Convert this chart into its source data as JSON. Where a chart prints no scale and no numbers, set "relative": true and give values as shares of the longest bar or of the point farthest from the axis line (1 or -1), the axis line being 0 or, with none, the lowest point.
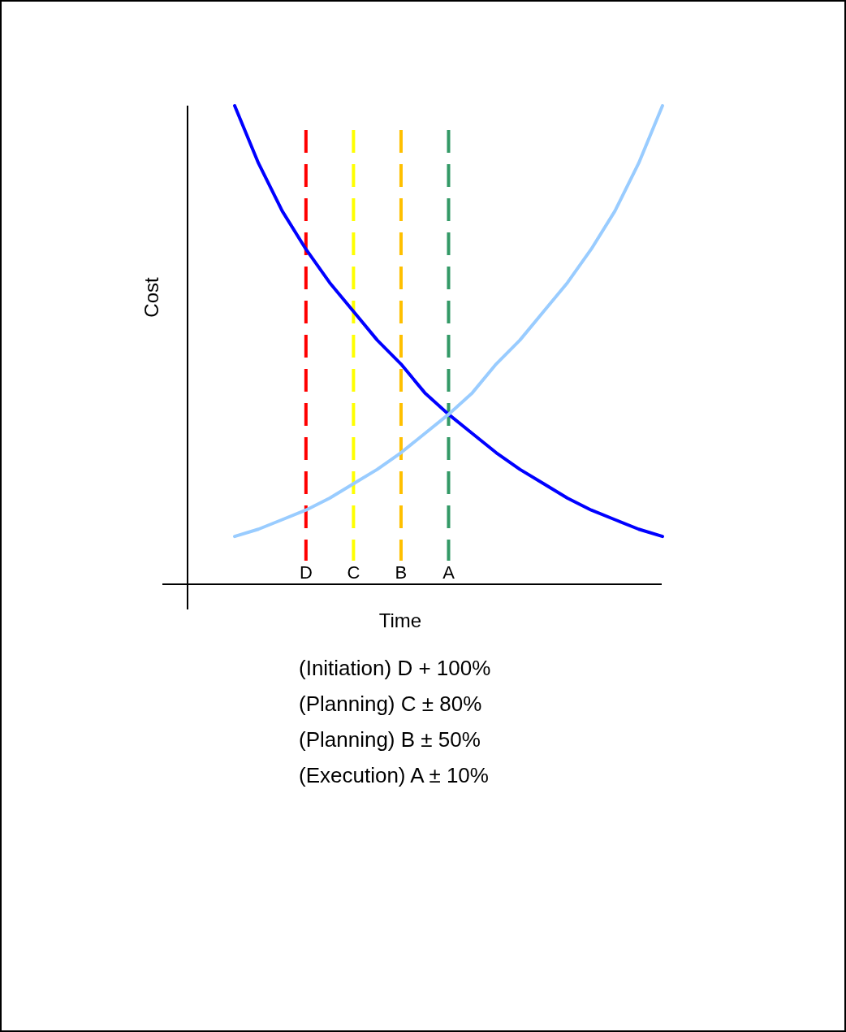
{
  "chart_data": {
    "type": "line",
    "relative": true,
    "xlabel": "Time",
    "ylabel": "Cost",
    "categories": [
      null,
      null,
      null,
      "D",
      null,
      "C",
      null,
      "B",
      null,
      "A",
      null,
      null,
      null,
      null,
      null,
      null,
      null,
      null,
      null
    ],
    "series": [
      {
        "color": "#0000ff",
        "values": [
          1.0,
          0.88,
          0.78,
          0.7,
          0.63,
          0.57,
          0.51,
          0.46,
          0.4,
          0.355,
          0.315,
          0.275,
          0.24,
          0.21,
          0.18,
          0.155,
          0.135,
          0.115,
          0.1
        ]
      },
      {
        "color": "#99ccff",
        "values": [
          0.1,
          0.115,
          0.135,
          0.155,
          0.18,
          0.21,
          0.24,
          0.275,
          0.315,
          0.355,
          0.4,
          0.46,
          0.51,
          0.57,
          0.63,
          0.7,
          0.78,
          0.88,
          1.0
        ]
      }
    ],
    "ref_lines": [
      {
        "axis": "x",
        "value": "D",
        "color": "#ff0000",
        "line_style": "dashed"
      },
      {
        "axis": "x",
        "value": "C",
        "color": "#ffff00",
        "line_style": "dashed"
      },
      {
        "axis": "x",
        "value": "B",
        "color": "#ffc000",
        "line_style": "dashed"
      },
      {
        "axis": "x",
        "value": "A",
        "color": "#339966",
        "line_style": "dashed"
      }
    ],
    "annotations": [
      "(Initiation) D + 100%",
      "(Planning) C ± 80%",
      "(Planning) B ± 50%",
      "(Execution) A ± 10%"
    ]
  }
}
